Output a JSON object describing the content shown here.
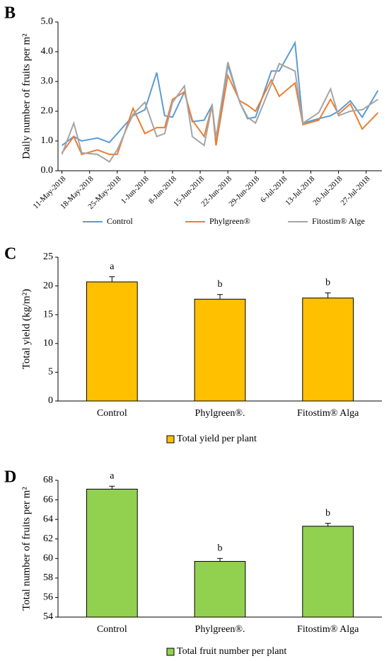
{
  "chart_data": [
    {
      "type": "line",
      "panel_label": "B",
      "y_label": "Daily number of fruits per m²",
      "x": [
        "2018-05-11",
        "2018-05-14",
        "2018-05-16",
        "2018-05-20",
        "2018-05-23",
        "2018-05-25",
        "2018-05-29",
        "2018-06-01",
        "2018-06-04",
        "2018-06-06",
        "2018-06-08",
        "2018-06-11",
        "2018-06-13",
        "2018-06-16",
        "2018-06-18",
        "2018-06-19",
        "2018-06-22",
        "2018-06-25",
        "2018-06-27",
        "2018-06-29",
        "2018-07-03",
        "2018-07-05",
        "2018-07-09",
        "2018-07-11",
        "2018-07-15",
        "2018-07-18",
        "2018-07-20",
        "2018-07-23",
        "2018-07-26",
        "2018-07-30"
      ],
      "series": [
        {
          "name": "Control",
          "color": "#5b9bd5",
          "values": [
            0.85,
            1.15,
            1.0,
            1.1,
            0.95,
            1.25,
            1.85,
            2.05,
            3.3,
            1.85,
            1.8,
            2.65,
            1.65,
            1.7,
            2.2,
            1.0,
            3.55,
            2.3,
            1.75,
            1.8,
            3.35,
            3.35,
            4.3,
            1.6,
            1.75,
            1.85,
            2.0,
            2.35,
            1.8,
            2.7
          ]
        },
        {
          "name": "Phylgreen®",
          "color": "#ed7d31",
          "values": [
            0.6,
            1.15,
            0.55,
            0.7,
            0.55,
            0.55,
            2.1,
            1.25,
            1.45,
            1.45,
            2.4,
            2.65,
            1.7,
            1.15,
            2.2,
            0.85,
            3.2,
            2.35,
            2.2,
            2.0,
            3.05,
            2.5,
            2.95,
            1.55,
            1.7,
            2.4,
            1.9,
            2.25,
            1.4,
            1.95
          ]
        },
        {
          "name": "Fitostim® Alge",
          "color": "#a5a5a5",
          "values": [
            0.55,
            1.6,
            0.6,
            0.55,
            0.3,
            0.7,
            1.9,
            2.3,
            1.15,
            1.25,
            2.3,
            2.85,
            1.15,
            0.85,
            2.2,
            1.1,
            3.65,
            2.3,
            1.8,
            1.6,
            2.9,
            3.6,
            3.35,
            1.6,
            1.95,
            2.75,
            1.85,
            2.0,
            2.05,
            2.4
          ]
        }
      ],
      "xlim": [
        "2018-05-10",
        "2018-07-31"
      ],
      "xticks": [
        {
          "value": "2018-05-11",
          "label": "11-May-2018"
        },
        {
          "value": "2018-05-18",
          "label": "18-May-2018"
        },
        {
          "value": "2018-05-25",
          "label": "25-May-2018"
        },
        {
          "value": "2018-06-01",
          "label": "1-Jun-2018"
        },
        {
          "value": "2018-06-08",
          "label": "8-Jun-2018"
        },
        {
          "value": "2018-06-15",
          "label": "15-Jun-2018"
        },
        {
          "value": "2018-06-22",
          "label": "22-Jun-2018"
        },
        {
          "value": "2018-06-29",
          "label": "29-Jun-2018"
        },
        {
          "value": "2018-07-06",
          "label": "6-Jul-2018"
        },
        {
          "value": "2018-07-13",
          "label": "13-Jul-2018"
        },
        {
          "value": "2018-07-20",
          "label": "20-Jul-2018"
        },
        {
          "value": "2018-07-27",
          "label": "27-Jul-2018"
        }
      ],
      "ylim": [
        0,
        5
      ],
      "yticks": [
        {
          "value": 0,
          "label": "0.0"
        },
        {
          "value": 1,
          "label": "1.0"
        },
        {
          "value": 2,
          "label": "2.0"
        },
        {
          "value": 3,
          "label": "3.0"
        },
        {
          "value": 4,
          "label": "4.0"
        },
        {
          "value": 5,
          "label": "5.0"
        }
      ]
    },
    {
      "type": "bar",
      "panel_label": "C",
      "y_label": "Total yield (kg/m²)",
      "categories": [
        "Control",
        "Phylgreen®.",
        "Fitostim® Alga"
      ],
      "series": [
        {
          "name": "Total yield per plant",
          "color": "#ffc000",
          "values": [
            20.7,
            17.7,
            17.9
          ],
          "errors": [
            0.9,
            0.8,
            0.9
          ]
        }
      ],
      "annotations": [
        "a",
        "b",
        "b"
      ],
      "ylim": [
        0,
        25
      ],
      "yticks": [
        0,
        5,
        10,
        15,
        20,
        25
      ]
    },
    {
      "type": "bar",
      "panel_label": "D",
      "y_label": "Total number of fruits per m²",
      "categories": [
        "Control",
        "Phylgreen®.",
        "Fitostim® Alga"
      ],
      "series": [
        {
          "name": "Total fruit number per plant",
          "color": "#92d050",
          "values": [
            67.1,
            59.7,
            63.3
          ],
          "errors": [
            0.3,
            0.3,
            0.3
          ]
        }
      ],
      "annotations": [
        "a",
        "b",
        "b"
      ],
      "ylim": [
        54,
        68
      ],
      "yticks": [
        54,
        56,
        58,
        60,
        62,
        64,
        66,
        68
      ]
    }
  ]
}
